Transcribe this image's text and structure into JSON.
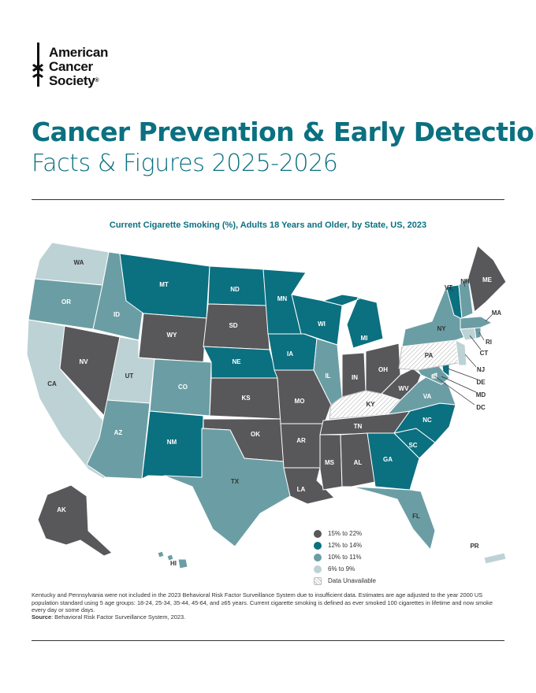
{
  "logo": {
    "line1": "American",
    "line2": "Cancer",
    "line3": "Society",
    "reg": "®"
  },
  "header": {
    "title": "Cancer Prevention & Early Detection",
    "subtitle": "Facts & Figures 2025-2026"
  },
  "map": {
    "title": "Current Cigarette Smoking (%), Adults 18 Years and Older, by State, US, 2023",
    "colors": {
      "c15_22": "#58585a",
      "c12_14": "#0b7080",
      "c10_11": "#6b9ea4",
      "c6_9": "#bdd2d5",
      "unavailable": "#ffffff"
    },
    "legend": [
      {
        "label": "15% to 22%",
        "key": "c15_22"
      },
      {
        "label": "12% to 14%",
        "key": "c12_14"
      },
      {
        "label": "10% to 11%",
        "key": "c10_11"
      },
      {
        "label": "6% to 9%",
        "key": "c6_9"
      },
      {
        "label": "Data Unavailable",
        "key": "unavailable"
      }
    ],
    "states": {
      "WA": "c6_9",
      "OR": "c10_11",
      "CA": "c6_9",
      "ID": "c10_11",
      "NV": "c15_22",
      "MT": "c12_14",
      "WY": "c15_22",
      "UT": "c6_9",
      "AZ": "c10_11",
      "CO": "c10_11",
      "NM": "c12_14",
      "ND": "c12_14",
      "SD": "c15_22",
      "NE": "c12_14",
      "KS": "c15_22",
      "OK": "c15_22",
      "TX": "c10_11",
      "MN": "c12_14",
      "IA": "c12_14",
      "MO": "c15_22",
      "AR": "c15_22",
      "LA": "c15_22",
      "WI": "c12_14",
      "IL": "c10_11",
      "MI": "c12_14",
      "IN": "c15_22",
      "OH": "c15_22",
      "KY": "unavailable",
      "TN": "c15_22",
      "MS": "c15_22",
      "AL": "c15_22",
      "GA": "c12_14",
      "FL": "c10_11",
      "SC": "c12_14",
      "NC": "c12_14",
      "VA": "c10_11",
      "WV": "c15_22",
      "PA": "unavailable",
      "NY": "c10_11",
      "VT": "c12_14",
      "NH": "c10_11",
      "ME": "c15_22",
      "MA": "c10_11",
      "RI": "c10_11",
      "CT": "c6_9",
      "NJ": "c6_9",
      "DE": "c12_14",
      "MD": "c10_11",
      "DC": "c6_9",
      "AK": "c15_22",
      "HI": "c10_11",
      "PR": "c6_9"
    }
  },
  "footnote": "Kentucky and Pennsylvania were not included in the 2023 Behavioral Risk Factor Surveillance System due to insufficient data. Estimates are age adjusted to the year 2000 US population standard using 5 age groups: 18-24, 25-34, 35-44, 45-64, and ≥65 years. Current cigarette smoking is defined as ever smoked 100 cigarettes in lifetime and now smoke every day or some days.",
  "source": {
    "label": "Source",
    "text": ": Behavioral Risk Factor Surveillance System, 2023."
  }
}
